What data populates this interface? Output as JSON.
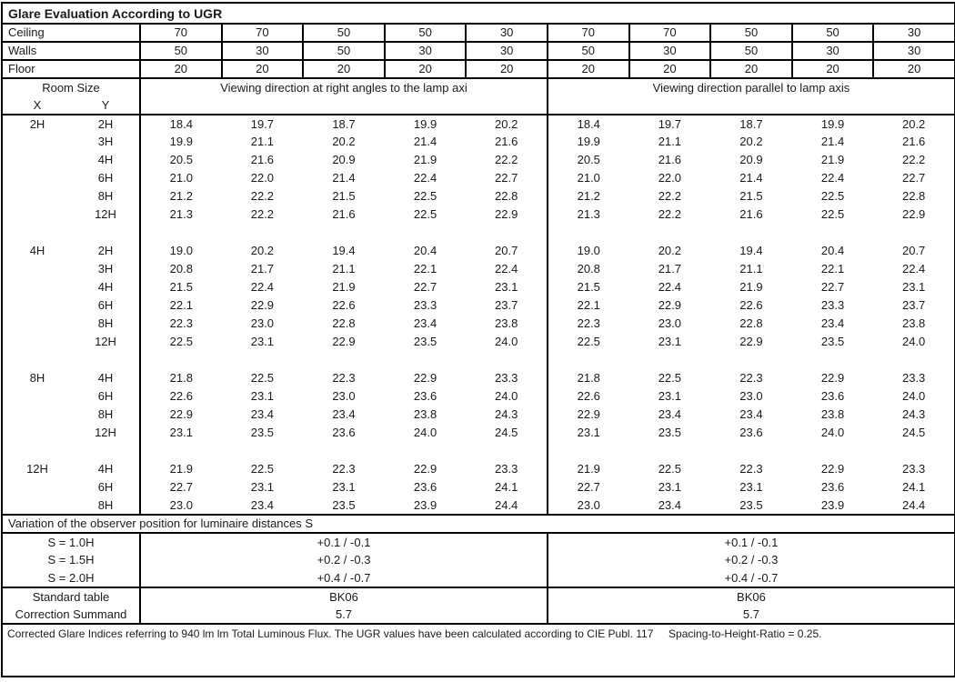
{
  "title": "Glare Evaluation According to UGR",
  "colors": {
    "border": "#000000",
    "text": "#1a1a1a",
    "background": "#ffffff"
  },
  "surface_rows": [
    {
      "label": "Ceiling",
      "values": [
        "70",
        "70",
        "50",
        "50",
        "30",
        "70",
        "70",
        "50",
        "50",
        "30"
      ]
    },
    {
      "label": "Walls",
      "values": [
        "50",
        "30",
        "50",
        "30",
        "30",
        "50",
        "30",
        "50",
        "30",
        "30"
      ]
    },
    {
      "label": "Floor",
      "values": [
        "20",
        "20",
        "20",
        "20",
        "20",
        "20",
        "20",
        "20",
        "20",
        "20"
      ]
    }
  ],
  "header": {
    "room_size": "Room Size",
    "x": "X",
    "y": "Y",
    "left_group": "Viewing direction at right angles to the lamp axi",
    "right_group": "Viewing direction parallel to lamp axis"
  },
  "ugr_blocks": [
    {
      "x": "2H",
      "rows": [
        {
          "y": "2H",
          "values": [
            "18.4",
            "19.7",
            "18.7",
            "19.9",
            "20.2",
            "18.4",
            "19.7",
            "18.7",
            "19.9",
            "20.2"
          ]
        },
        {
          "y": "3H",
          "values": [
            "19.9",
            "21.1",
            "20.2",
            "21.4",
            "21.6",
            "19.9",
            "21.1",
            "20.2",
            "21.4",
            "21.6"
          ]
        },
        {
          "y": "4H",
          "values": [
            "20.5",
            "21.6",
            "20.9",
            "21.9",
            "22.2",
            "20.5",
            "21.6",
            "20.9",
            "21.9",
            "22.2"
          ]
        },
        {
          "y": "6H",
          "values": [
            "21.0",
            "22.0",
            "21.4",
            "22.4",
            "22.7",
            "21.0",
            "22.0",
            "21.4",
            "22.4",
            "22.7"
          ]
        },
        {
          "y": "8H",
          "values": [
            "21.2",
            "22.2",
            "21.5",
            "22.5",
            "22.8",
            "21.2",
            "22.2",
            "21.5",
            "22.5",
            "22.8"
          ]
        },
        {
          "y": "12H",
          "values": [
            "21.3",
            "22.2",
            "21.6",
            "22.5",
            "22.9",
            "21.3",
            "22.2",
            "21.6",
            "22.5",
            "22.9"
          ]
        }
      ]
    },
    {
      "x": "4H",
      "rows": [
        {
          "y": "2H",
          "values": [
            "19.0",
            "20.2",
            "19.4",
            "20.4",
            "20.7",
            "19.0",
            "20.2",
            "19.4",
            "20.4",
            "20.7"
          ]
        },
        {
          "y": "3H",
          "values": [
            "20.8",
            "21.7",
            "21.1",
            "22.1",
            "22.4",
            "20.8",
            "21.7",
            "21.1",
            "22.1",
            "22.4"
          ]
        },
        {
          "y": "4H",
          "values": [
            "21.5",
            "22.4",
            "21.9",
            "22.7",
            "23.1",
            "21.5",
            "22.4",
            "21.9",
            "22.7",
            "23.1"
          ]
        },
        {
          "y": "6H",
          "values": [
            "22.1",
            "22.9",
            "22.6",
            "23.3",
            "23.7",
            "22.1",
            "22.9",
            "22.6",
            "23.3",
            "23.7"
          ]
        },
        {
          "y": "8H",
          "values": [
            "22.3",
            "23.0",
            "22.8",
            "23.4",
            "23.8",
            "22.3",
            "23.0",
            "22.8",
            "23.4",
            "23.8"
          ]
        },
        {
          "y": "12H",
          "values": [
            "22.5",
            "23.1",
            "22.9",
            "23.5",
            "24.0",
            "22.5",
            "23.1",
            "22.9",
            "23.5",
            "24.0"
          ]
        }
      ]
    },
    {
      "x": "8H",
      "rows": [
        {
          "y": "4H",
          "values": [
            "21.8",
            "22.5",
            "22.3",
            "22.9",
            "23.3",
            "21.8",
            "22.5",
            "22.3",
            "22.9",
            "23.3"
          ]
        },
        {
          "y": "6H",
          "values": [
            "22.6",
            "23.1",
            "23.0",
            "23.6",
            "24.0",
            "22.6",
            "23.1",
            "23.0",
            "23.6",
            "24.0"
          ]
        },
        {
          "y": "8H",
          "values": [
            "22.9",
            "23.4",
            "23.4",
            "23.8",
            "24.3",
            "22.9",
            "23.4",
            "23.4",
            "23.8",
            "24.3"
          ]
        },
        {
          "y": "12H",
          "values": [
            "23.1",
            "23.5",
            "23.6",
            "24.0",
            "24.5",
            "23.1",
            "23.5",
            "23.6",
            "24.0",
            "24.5"
          ]
        }
      ]
    },
    {
      "x": "12H",
      "rows": [
        {
          "y": "4H",
          "values": [
            "21.9",
            "22.5",
            "22.3",
            "22.9",
            "23.3",
            "21.9",
            "22.5",
            "22.3",
            "22.9",
            "23.3"
          ]
        },
        {
          "y": "6H",
          "values": [
            "22.7",
            "23.1",
            "23.1",
            "23.6",
            "24.1",
            "22.7",
            "23.1",
            "23.1",
            "23.6",
            "24.1"
          ]
        },
        {
          "y": "8H",
          "values": [
            "23.0",
            "23.4",
            "23.5",
            "23.9",
            "24.4",
            "23.0",
            "23.4",
            "23.5",
            "23.9",
            "24.4"
          ]
        }
      ]
    }
  ],
  "variation_title": "Variation of the observer position for luminaire distances S",
  "variation_rows": [
    {
      "label": "S = 1.0H",
      "left": "+0.1 / -0.1",
      "right": "+0.1 / -0.1"
    },
    {
      "label": "S = 1.5H",
      "left": "+0.2 / -0.3",
      "right": "+0.2 / -0.3"
    },
    {
      "label": "S = 2.0H",
      "left": "+0.4 / -0.7",
      "right": "+0.4 / -0.7"
    }
  ],
  "summary_rows": [
    {
      "label": "Standard table",
      "left": "BK06",
      "right": "BK06"
    },
    {
      "label": "Correction Summand",
      "left": "5.7",
      "right": "5.7"
    }
  ],
  "footer_note": "Corrected Glare Indices referring to 940 lm lm Total Luminous Flux. The UGR values have been calculated according to CIE Publ. 117     Spacing-to-Height-Ratio = 0.25."
}
